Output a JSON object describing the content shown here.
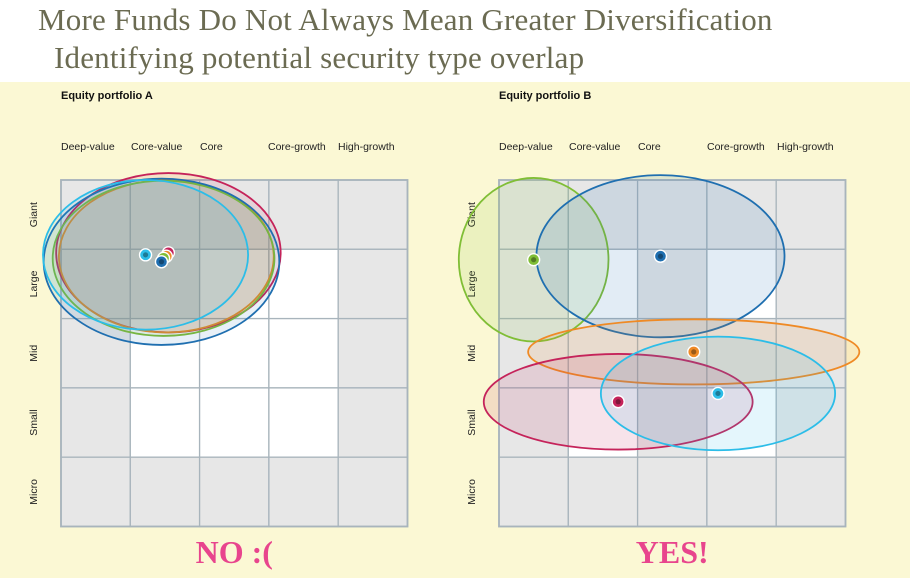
{
  "slide": {
    "title": "More Funds Do Not Always Mean Greater Diversification",
    "subtitle": "Identifying potential security type overlap"
  },
  "styles": [
    "Deep-value",
    "Core-value",
    "Core",
    "Core-growth",
    "High-growth"
  ],
  "sizes": [
    "Giant",
    "Large",
    "Mid",
    "Small",
    "Micro"
  ],
  "colors": {
    "background": "#fbf8d4",
    "title": "#6b6b52",
    "grid_cell": "#e7e7e7",
    "grid_line": "#a8b4bc",
    "verdict": "#e8458d",
    "red": "#c5235a",
    "blue": "#1f6fb0",
    "green": "#80be36",
    "orange": "#ef8a25",
    "cyan": "#2cbde8"
  },
  "panels": [
    {
      "title": "Equity portfolio A",
      "verdict": "NO :(",
      "white_cells": [
        [
          1,
          2
        ],
        [
          1,
          3
        ],
        [
          2,
          1
        ],
        [
          2,
          2
        ],
        [
          2,
          3
        ],
        [
          3,
          1
        ],
        [
          3,
          2
        ],
        [
          3,
          3
        ]
      ],
      "funds": [
        {
          "color": "red",
          "style": 1.55,
          "size": 1.05,
          "rx": 1.62,
          "ry": 1.15
        },
        {
          "color": "orange",
          "style": 1.52,
          "size": 1.1,
          "rx": 1.55,
          "ry": 1.1
        },
        {
          "color": "green",
          "style": 1.48,
          "size": 1.13,
          "rx": 1.6,
          "ry": 1.12
        },
        {
          "color": "blue",
          "style": 1.45,
          "size": 1.18,
          "rx": 1.7,
          "ry": 1.2
        },
        {
          "color": "cyan",
          "style": 1.22,
          "size": 1.08,
          "rx": 1.48,
          "ry": 1.08
        }
      ]
    },
    {
      "title": "Equity portfolio B",
      "verdict": "YES!",
      "white_cells": [
        [
          1,
          1
        ],
        [
          1,
          3
        ],
        [
          3,
          1
        ],
        [
          3,
          3
        ]
      ],
      "funds": [
        {
          "color": "green",
          "style": 0.5,
          "size": 1.15,
          "rx": 1.08,
          "ry": 1.18
        },
        {
          "color": "blue",
          "style": 2.33,
          "size": 1.1,
          "rx": 1.79,
          "ry": 1.17
        },
        {
          "color": "orange",
          "style": 2.81,
          "size": 2.48,
          "rx": 2.39,
          "ry": 0.47
        },
        {
          "color": "red",
          "style": 1.72,
          "size": 3.2,
          "rx": 1.94,
          "ry": 0.69
        },
        {
          "color": "cyan",
          "style": 3.16,
          "size": 3.08,
          "rx": 1.69,
          "ry": 0.82
        }
      ]
    }
  ]
}
